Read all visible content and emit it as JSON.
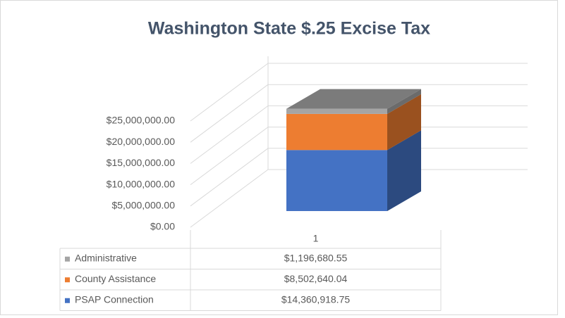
{
  "chart_data": {
    "type": "bar3d_stacked",
    "title": "Washington  State $.25 Excise Tax",
    "categories": [
      "1"
    ],
    "series": [
      {
        "name": "PSAP Connection",
        "color": "#4472c4",
        "values": [
          14360918.75
        ],
        "value_labels": [
          "$14,360,918.75"
        ]
      },
      {
        "name": "County Assistance",
        "color": "#ed7d31",
        "values": [
          8502640.04
        ],
        "value_labels": [
          "$8,502,640.04"
        ]
      },
      {
        "name": "Administrative",
        "color": "#a5a5a5",
        "values": [
          1196680.55
        ],
        "value_labels": [
          "$1,196,680.55"
        ]
      }
    ],
    "ylim": [
      0,
      25000000
    ],
    "yticks": [
      {
        "value": 0,
        "label": "$0.00"
      },
      {
        "value": 5000000,
        "label": "$5,000,000.00"
      },
      {
        "value": 10000000,
        "label": "$10,000,000.00"
      },
      {
        "value": 15000000,
        "label": "$15,000,000.00"
      },
      {
        "value": 20000000,
        "label": "$20,000,000.00"
      },
      {
        "value": 25000000,
        "label": "$25,000,000.00"
      }
    ],
    "grid": true
  }
}
